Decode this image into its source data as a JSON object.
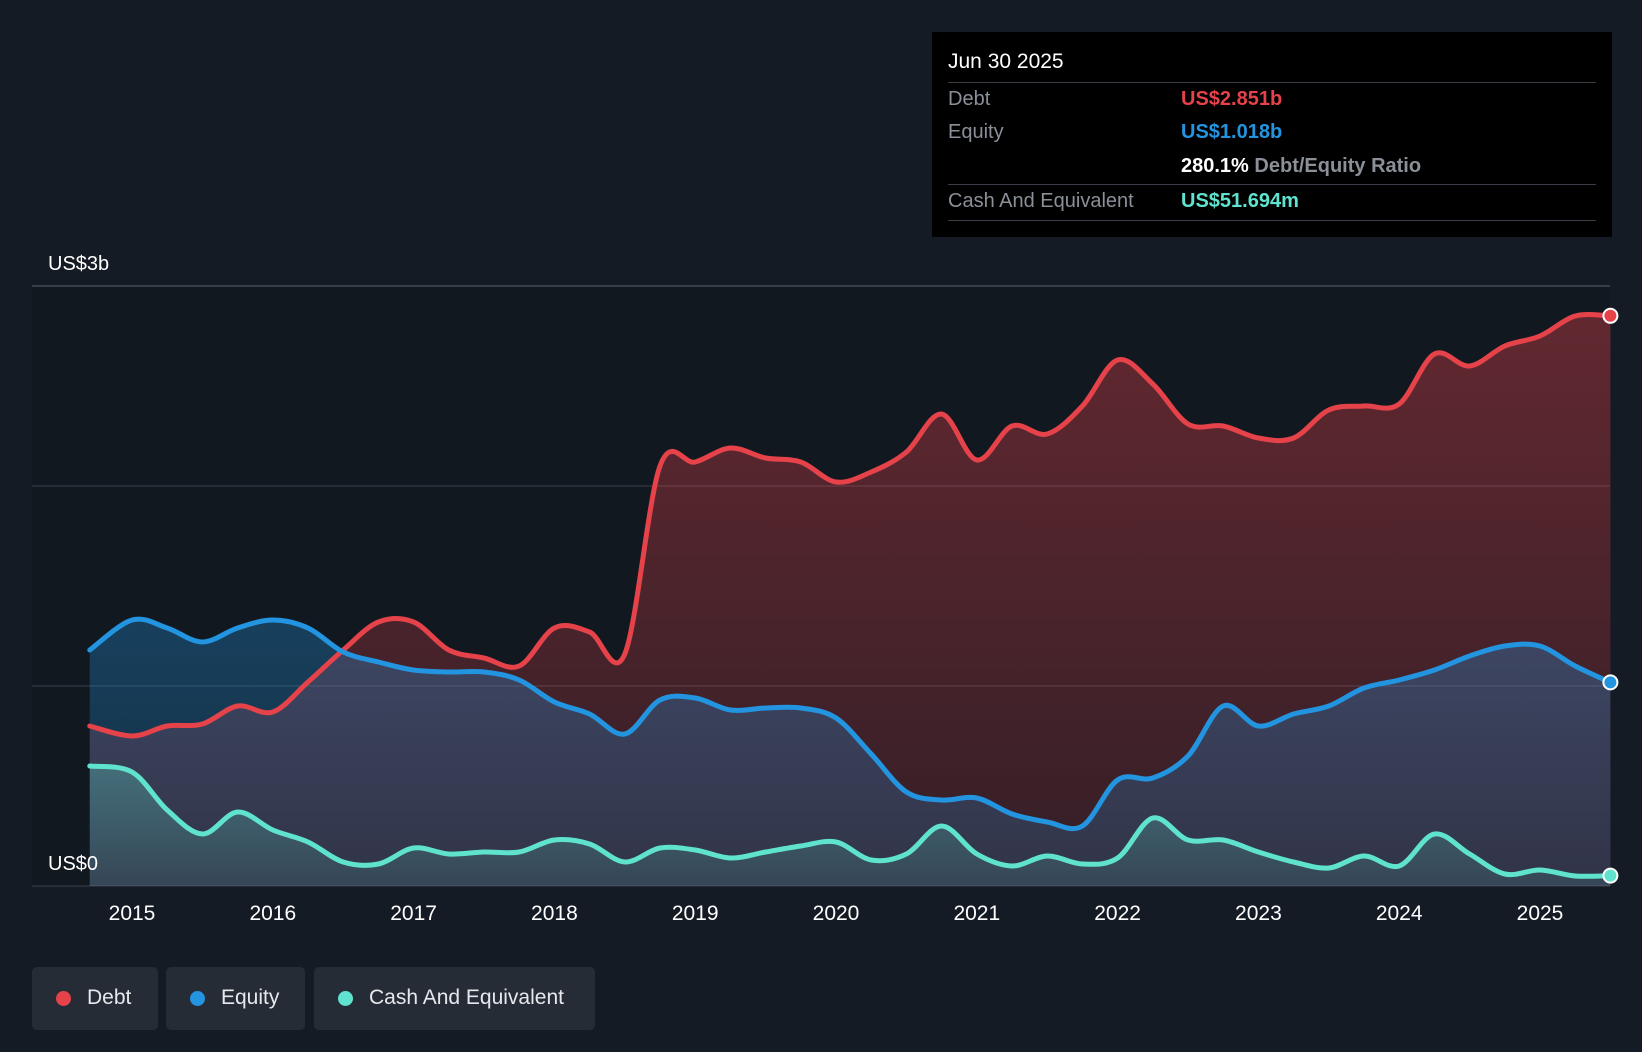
{
  "tooltip": {
    "date": "Jun 30 2025",
    "debt_label": "Debt",
    "debt_value": "US$2.851b",
    "equity_label": "Equity",
    "equity_value": "US$1.018b",
    "ratio_value": "280.1%",
    "ratio_label": "Debt/Equity Ratio",
    "cash_label": "Cash And Equivalent",
    "cash_value": "US$51.694m"
  },
  "legend": {
    "debt": "Debt",
    "equity": "Equity",
    "cash": "Cash And Equivalent"
  },
  "colors": {
    "background": "#151b24",
    "debt": "#e5424a",
    "equity": "#2394df",
    "cash": "#5fe3cf",
    "grid": "#3a414c"
  },
  "chart_data": {
    "type": "area",
    "title": "",
    "y_top_label": "US$3b",
    "y_bottom_label": "US$0",
    "ylim": [
      0,
      3.0
    ],
    "xlim": [
      2014.5,
      2025.5
    ],
    "x_tick_labels": [
      "2015",
      "2016",
      "2017",
      "2018",
      "2019",
      "2020",
      "2021",
      "2022",
      "2023",
      "2024",
      "2025"
    ],
    "legend_position": "bottom-left",
    "series": [
      {
        "name": "Debt",
        "points": [
          [
            2014.7,
            0.8
          ],
          [
            2015.0,
            0.75
          ],
          [
            2015.25,
            0.8
          ],
          [
            2015.5,
            0.81
          ],
          [
            2015.75,
            0.9
          ],
          [
            2016.0,
            0.87
          ],
          [
            2016.25,
            1.02
          ],
          [
            2016.5,
            1.18
          ],
          [
            2016.75,
            1.32
          ],
          [
            2017.0,
            1.32
          ],
          [
            2017.25,
            1.18
          ],
          [
            2017.5,
            1.14
          ],
          [
            2017.75,
            1.1
          ],
          [
            2018.0,
            1.29
          ],
          [
            2018.25,
            1.27
          ],
          [
            2018.5,
            1.16
          ],
          [
            2018.75,
            2.1
          ],
          [
            2019.0,
            2.12
          ],
          [
            2019.25,
            2.19
          ],
          [
            2019.5,
            2.14
          ],
          [
            2019.75,
            2.12
          ],
          [
            2020.0,
            2.02
          ],
          [
            2020.25,
            2.07
          ],
          [
            2020.5,
            2.17
          ],
          [
            2020.75,
            2.36
          ],
          [
            2021.0,
            2.13
          ],
          [
            2021.25,
            2.3
          ],
          [
            2021.5,
            2.26
          ],
          [
            2021.75,
            2.4
          ],
          [
            2022.0,
            2.63
          ],
          [
            2022.25,
            2.51
          ],
          [
            2022.5,
            2.31
          ],
          [
            2022.75,
            2.3
          ],
          [
            2023.0,
            2.24
          ],
          [
            2023.25,
            2.24
          ],
          [
            2023.5,
            2.38
          ],
          [
            2023.75,
            2.4
          ],
          [
            2024.0,
            2.41
          ],
          [
            2024.25,
            2.66
          ],
          [
            2024.5,
            2.6
          ],
          [
            2024.75,
            2.7
          ],
          [
            2025.0,
            2.75
          ],
          [
            2025.25,
            2.85
          ],
          [
            2025.5,
            2.851
          ]
        ]
      },
      {
        "name": "Equity",
        "points": [
          [
            2014.7,
            1.18
          ],
          [
            2015.0,
            1.33
          ],
          [
            2015.25,
            1.29
          ],
          [
            2015.5,
            1.22
          ],
          [
            2015.75,
            1.29
          ],
          [
            2016.0,
            1.33
          ],
          [
            2016.25,
            1.29
          ],
          [
            2016.5,
            1.17
          ],
          [
            2016.75,
            1.12
          ],
          [
            2017.0,
            1.08
          ],
          [
            2017.25,
            1.07
          ],
          [
            2017.5,
            1.07
          ],
          [
            2017.75,
            1.03
          ],
          [
            2018.0,
            0.92
          ],
          [
            2018.25,
            0.86
          ],
          [
            2018.5,
            0.76
          ],
          [
            2018.75,
            0.93
          ],
          [
            2019.0,
            0.94
          ],
          [
            2019.25,
            0.88
          ],
          [
            2019.5,
            0.89
          ],
          [
            2019.75,
            0.89
          ],
          [
            2020.0,
            0.84
          ],
          [
            2020.25,
            0.66
          ],
          [
            2020.5,
            0.47
          ],
          [
            2020.75,
            0.43
          ],
          [
            2021.0,
            0.44
          ],
          [
            2021.25,
            0.36
          ],
          [
            2021.5,
            0.32
          ],
          [
            2021.75,
            0.3
          ],
          [
            2022.0,
            0.53
          ],
          [
            2022.25,
            0.54
          ],
          [
            2022.5,
            0.65
          ],
          [
            2022.75,
            0.9
          ],
          [
            2023.0,
            0.8
          ],
          [
            2023.25,
            0.86
          ],
          [
            2023.5,
            0.9
          ],
          [
            2023.75,
            0.99
          ],
          [
            2024.0,
            1.03
          ],
          [
            2024.25,
            1.08
          ],
          [
            2024.5,
            1.15
          ],
          [
            2024.75,
            1.2
          ],
          [
            2025.0,
            1.2
          ],
          [
            2025.25,
            1.1
          ],
          [
            2025.5,
            1.018
          ]
        ]
      },
      {
        "name": "Cash And Equivalent",
        "points": [
          [
            2014.7,
            0.6
          ],
          [
            2015.0,
            0.57
          ],
          [
            2015.25,
            0.38
          ],
          [
            2015.5,
            0.26
          ],
          [
            2015.75,
            0.37
          ],
          [
            2016.0,
            0.28
          ],
          [
            2016.25,
            0.22
          ],
          [
            2016.5,
            0.12
          ],
          [
            2016.75,
            0.11
          ],
          [
            2017.0,
            0.19
          ],
          [
            2017.25,
            0.16
          ],
          [
            2017.5,
            0.17
          ],
          [
            2017.75,
            0.17
          ],
          [
            2018.0,
            0.23
          ],
          [
            2018.25,
            0.21
          ],
          [
            2018.5,
            0.12
          ],
          [
            2018.75,
            0.19
          ],
          [
            2019.0,
            0.18
          ],
          [
            2019.25,
            0.14
          ],
          [
            2019.5,
            0.17
          ],
          [
            2019.75,
            0.2
          ],
          [
            2020.0,
            0.22
          ],
          [
            2020.25,
            0.13
          ],
          [
            2020.5,
            0.16
          ],
          [
            2020.75,
            0.3
          ],
          [
            2021.0,
            0.16
          ],
          [
            2021.25,
            0.1
          ],
          [
            2021.5,
            0.15
          ],
          [
            2021.75,
            0.11
          ],
          [
            2022.0,
            0.14
          ],
          [
            2022.25,
            0.34
          ],
          [
            2022.5,
            0.23
          ],
          [
            2022.75,
            0.23
          ],
          [
            2023.0,
            0.17
          ],
          [
            2023.25,
            0.12
          ],
          [
            2023.5,
            0.09
          ],
          [
            2023.75,
            0.15
          ],
          [
            2024.0,
            0.1
          ],
          [
            2024.25,
            0.26
          ],
          [
            2024.5,
            0.16
          ],
          [
            2024.75,
            0.06
          ],
          [
            2025.0,
            0.08
          ],
          [
            2025.25,
            0.05
          ],
          [
            2025.5,
            0.052
          ]
        ]
      }
    ]
  }
}
